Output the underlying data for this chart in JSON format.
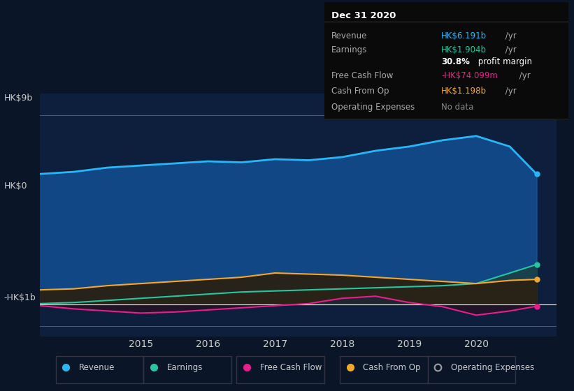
{
  "bg_color": "#0a1628",
  "chart_bg": "#0d1f3c",
  "plot_bg_upper": "#0d2a4a",
  "plot_bg_lower": "#12263d",
  "years": [
    2013.5,
    2014,
    2014.5,
    2015,
    2015.5,
    2016,
    2016.5,
    2017,
    2017.5,
    2018,
    2018.5,
    2019,
    2019.5,
    2020,
    2020.5,
    2020.9
  ],
  "revenue": [
    6.2,
    6.3,
    6.5,
    6.6,
    6.7,
    6.8,
    6.75,
    6.9,
    6.85,
    7.0,
    7.3,
    7.5,
    7.8,
    8.0,
    7.5,
    6.191
  ],
  "earnings": [
    0.05,
    0.1,
    0.2,
    0.3,
    0.4,
    0.5,
    0.6,
    0.65,
    0.7,
    0.75,
    0.8,
    0.85,
    0.9,
    1.0,
    1.5,
    1.904
  ],
  "free_cash_flow": [
    -0.05,
    -0.2,
    -0.3,
    -0.4,
    -0.35,
    -0.25,
    -0.15,
    -0.05,
    0.05,
    0.3,
    0.4,
    0.1,
    -0.1,
    -0.5,
    -0.3,
    -0.074
  ],
  "cash_from_op": [
    0.7,
    0.75,
    0.9,
    1.0,
    1.1,
    1.2,
    1.3,
    1.5,
    1.45,
    1.4,
    1.3,
    1.2,
    1.1,
    1.0,
    1.15,
    1.198
  ],
  "revenue_color": "#29b6f6",
  "earnings_color": "#26c6a0",
  "fcf_color": "#e91e8c",
  "cashop_color": "#f4a82a",
  "opex_color": "#9e9e9e",
  "revenue_fill": "#1a3f6f",
  "earnings_fill": "#1a4040",
  "fcf_fill_pos": "#2a2a4a",
  "fcf_fill_neg": "#2a1a2a",
  "ylabel_hk9b": "HK$9b",
  "ylabel_hk0": "HK$0",
  "ylabel_hkm1b": "-HK$1b",
  "info_box": {
    "title": "Dec 31 2020",
    "rows": [
      {
        "label": "Revenue",
        "value": "HK$6.191b",
        "suffix": " /yr",
        "color": "#29b6f6"
      },
      {
        "label": "Earnings",
        "value": "HK$1.904b",
        "suffix": " /yr",
        "color": "#26c6a0"
      },
      {
        "label": "",
        "value": "30.8%",
        "suffix": " profit margin",
        "color": "#ffffff"
      },
      {
        "label": "Free Cash Flow",
        "value": "-HK$74.099m",
        "suffix": " /yr",
        "color": "#e91e8c"
      },
      {
        "label": "Cash From Op",
        "value": "HK$1.198b",
        "suffix": " /yr",
        "color": "#f4a82a"
      },
      {
        "label": "Operating Expenses",
        "value": "No data",
        "suffix": "",
        "color": "#888888"
      }
    ]
  },
  "legend": [
    {
      "label": "Revenue",
      "color": "#29b6f6",
      "filled": true
    },
    {
      "label": "Earnings",
      "color": "#26c6a0",
      "filled": true
    },
    {
      "label": "Free Cash Flow",
      "color": "#e91e8c",
      "filled": true
    },
    {
      "label": "Cash From Op",
      "color": "#f4a82a",
      "filled": true
    },
    {
      "label": "Operating Expenses",
      "color": "#9e9e9e",
      "filled": false
    }
  ],
  "xticks": [
    2015,
    2016,
    2017,
    2018,
    2019,
    2020
  ],
  "ylim": [
    -1.5,
    10
  ],
  "zero_line": 0,
  "hline_9b": 9,
  "hline_0": 0,
  "hline_m1b": -1
}
